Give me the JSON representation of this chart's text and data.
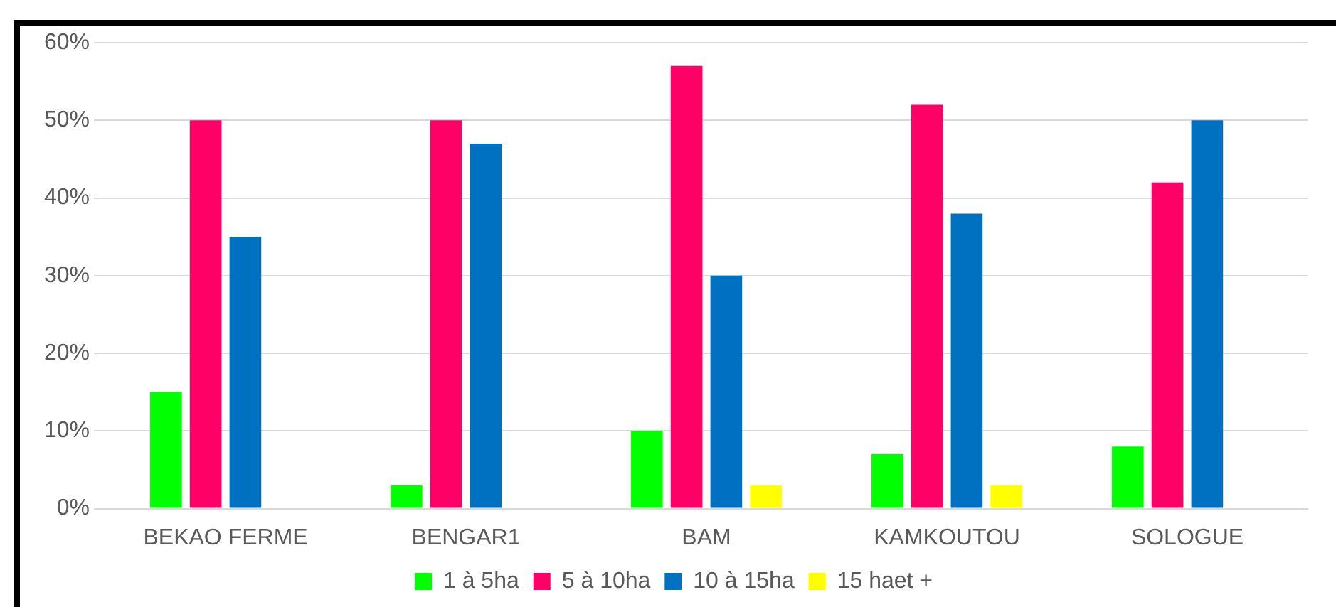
{
  "chart_data": {
    "type": "bar",
    "categories": [
      "BEKAO FERME",
      "BENGAR1",
      "BAM",
      "KAMKOUTOU",
      "SOLOGUE"
    ],
    "series": [
      {
        "name": "1 à 5ha",
        "color": "#00ff00",
        "values": [
          15,
          3,
          10,
          7,
          8
        ]
      },
      {
        "name": "5 à 10ha",
        "color": "#ff0066",
        "values": [
          50,
          50,
          57,
          52,
          42
        ]
      },
      {
        "name": "10 à 15ha",
        "color": "#0070c0",
        "values": [
          35,
          47,
          30,
          38,
          50
        ]
      },
      {
        "name": "15 haet +",
        "color": "#ffff00",
        "values": [
          0,
          0,
          3,
          3,
          0
        ]
      }
    ],
    "ylim": [
      0,
      60
    ],
    "yticks": [
      {
        "value": 0,
        "label": "0%"
      },
      {
        "value": 10,
        "label": "10%"
      },
      {
        "value": 20,
        "label": "20%"
      },
      {
        "value": 30,
        "label": "30%"
      },
      {
        "value": 40,
        "label": "40%"
      },
      {
        "value": 50,
        "label": "50%"
      },
      {
        "value": 60,
        "label": "60%"
      }
    ],
    "grid": "y",
    "legend": "bottom"
  }
}
